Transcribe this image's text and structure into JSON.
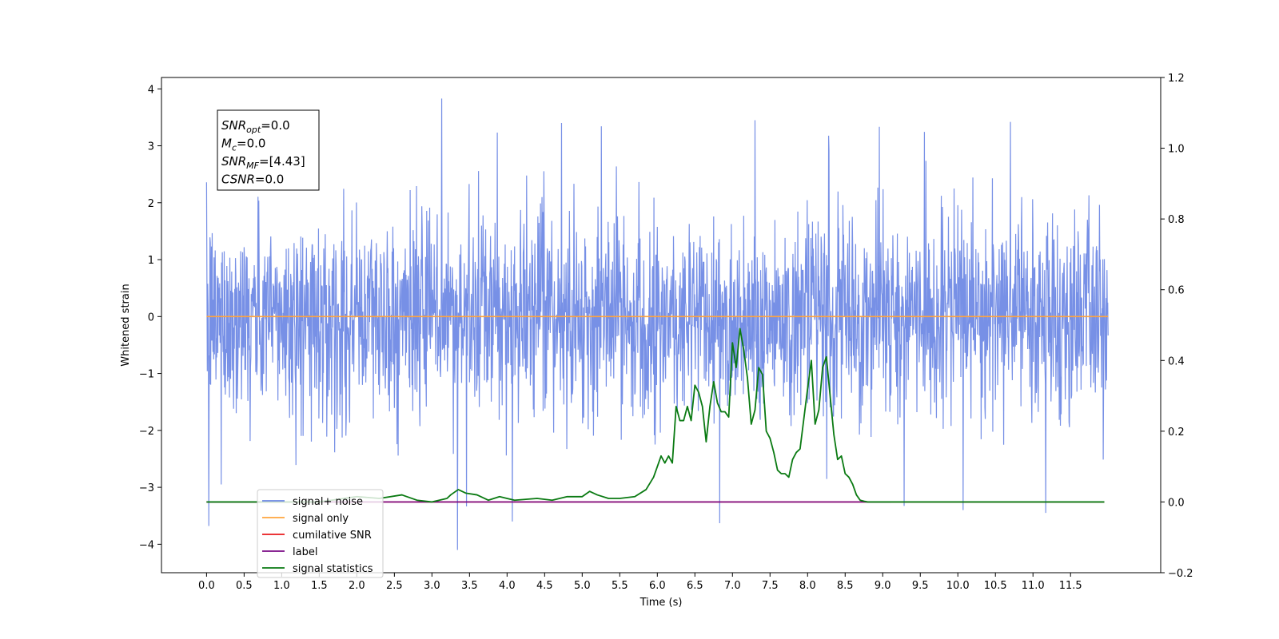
{
  "chart_data": {
    "type": "line",
    "title": "",
    "xlabel": "Time (s)",
    "ylabel": "Whitened strain",
    "y2label": "",
    "xlim": [
      -0.6,
      12.7
    ],
    "ylim": [
      -4.5,
      4.2
    ],
    "y2lim": [
      -0.2,
      1.2
    ],
    "x_ticks": [
      0.0,
      0.5,
      1.0,
      1.5,
      2.0,
      2.5,
      3.0,
      3.5,
      4.0,
      4.5,
      5.0,
      5.5,
      6.0,
      6.5,
      7.0,
      7.5,
      8.0,
      8.5,
      9.0,
      9.5,
      10.0,
      10.5,
      11.0,
      11.5
    ],
    "x_tick_labels": [
      "0.0",
      "0.5",
      "1.0",
      "1.5",
      "2.0",
      "2.5",
      "3.0",
      "3.5",
      "4.0",
      "4.5",
      "5.0",
      "5.5",
      "6.0",
      "6.5",
      "7.0",
      "7.5",
      "8.0",
      "8.5",
      "9.0",
      "9.5",
      "10.0",
      "10.5",
      "11.0",
      "11.5"
    ],
    "y_ticks": [
      -4,
      -3,
      -2,
      -1,
      0,
      1,
      2,
      3,
      4
    ],
    "y_tick_labels": [
      "−4",
      "−3",
      "−2",
      "−1",
      "0",
      "1",
      "2",
      "3",
      "4"
    ],
    "y2_ticks": [
      -0.2,
      0.0,
      0.2,
      0.4,
      0.6,
      0.8,
      1.0,
      1.2
    ],
    "y2_tick_labels": [
      "−0.2",
      "0.0",
      "0.2",
      "0.4",
      "0.6",
      "0.8",
      "1.0",
      "1.2"
    ],
    "grid": false,
    "legend_position": "lower-left",
    "series": [
      {
        "name": "signal+ noise",
        "axis": "left",
        "color": "#6b87e4",
        "kind": "noise",
        "x_range": [
          0.0,
          12.0
        ],
        "std": 0.85,
        "spikes": [
          {
            "x": 3.13,
            "y": 3.83
          },
          {
            "x": 3.34,
            "y": -4.1
          },
          {
            "x": 0.03,
            "y": -3.68
          },
          {
            "x": 6.83,
            "y": -3.63
          },
          {
            "x": 11.17,
            "y": -3.45
          },
          {
            "x": 4.07,
            "y": -3.6
          },
          {
            "x": 7.3,
            "y": 3.45
          },
          {
            "x": 10.7,
            "y": 3.42
          }
        ]
      },
      {
        "name": "signal only",
        "axis": "left",
        "color": "#ffa43d",
        "x": [
          0.0,
          12.0
        ],
        "y": [
          0.0,
          0.0
        ]
      },
      {
        "name": "cumilative SNR",
        "axis": "right",
        "color": "#e8191c",
        "x": [
          0.0,
          11.95
        ],
        "y": [
          0.0,
          0.0
        ]
      },
      {
        "name": "label",
        "axis": "right",
        "color": "#7a0a85",
        "x": [
          0.0,
          9.1
        ],
        "y": [
          0.0,
          0.0
        ]
      },
      {
        "name": "signal statistics",
        "axis": "right",
        "color": "#0a7a12",
        "x": [
          0.0,
          1.5,
          2.0,
          2.3,
          2.6,
          2.8,
          3.0,
          3.2,
          3.25,
          3.35,
          3.45,
          3.6,
          3.75,
          3.9,
          4.1,
          4.4,
          4.6,
          4.8,
          5.0,
          5.1,
          5.2,
          5.35,
          5.5,
          5.7,
          5.85,
          5.95,
          6.0,
          6.05,
          6.1,
          6.15,
          6.2,
          6.25,
          6.3,
          6.35,
          6.4,
          6.45,
          6.5,
          6.55,
          6.6,
          6.65,
          6.7,
          6.75,
          6.8,
          6.85,
          6.9,
          6.95,
          7.0,
          7.05,
          7.1,
          7.15,
          7.2,
          7.25,
          7.3,
          7.35,
          7.4,
          7.45,
          7.5,
          7.55,
          7.6,
          7.65,
          7.7,
          7.75,
          7.8,
          7.85,
          7.9,
          8.0,
          8.05,
          8.1,
          8.15,
          8.2,
          8.25,
          8.3,
          8.35,
          8.4,
          8.45,
          8.5,
          8.55,
          8.6,
          8.65,
          8.7,
          8.75,
          8.8,
          8.85,
          8.9,
          8.95,
          9.0,
          9.05,
          9.1,
          9.15,
          9.3,
          10.0,
          11.0,
          11.95
        ],
        "y": [
          0.0,
          0.0,
          0.015,
          0.01,
          0.02,
          0.005,
          0.0,
          0.01,
          0.02,
          0.035,
          0.025,
          0.02,
          0.005,
          0.015,
          0.005,
          0.01,
          0.005,
          0.015,
          0.015,
          0.03,
          0.02,
          0.01,
          0.01,
          0.015,
          0.035,
          0.07,
          0.1,
          0.13,
          0.11,
          0.13,
          0.11,
          0.27,
          0.23,
          0.23,
          0.27,
          0.23,
          0.33,
          0.31,
          0.27,
          0.17,
          0.27,
          0.34,
          0.28,
          0.255,
          0.255,
          0.24,
          0.45,
          0.38,
          0.49,
          0.43,
          0.35,
          0.22,
          0.26,
          0.38,
          0.36,
          0.2,
          0.18,
          0.14,
          0.09,
          0.08,
          0.08,
          0.07,
          0.12,
          0.14,
          0.15,
          0.32,
          0.4,
          0.22,
          0.26,
          0.38,
          0.41,
          0.3,
          0.19,
          0.12,
          0.13,
          0.08,
          0.07,
          0.05,
          0.02,
          0.005,
          0.002,
          0.0,
          0.0,
          0.0,
          0.0,
          0.0,
          0.0,
          0.0,
          0.0,
          0.0,
          0.0,
          0.0,
          0.0
        ]
      }
    ],
    "annotation": {
      "lines": [
        {
          "main": "SNR",
          "sub": "opt",
          "rest": "=0.0"
        },
        {
          "main": "M",
          "sub": "c",
          "rest": "=0.0"
        },
        {
          "main": "SNR",
          "sub": "MF",
          "rest": "=[4.43]"
        },
        {
          "main": "CSNR",
          "sub": "",
          "rest": "=0.0"
        }
      ]
    }
  }
}
